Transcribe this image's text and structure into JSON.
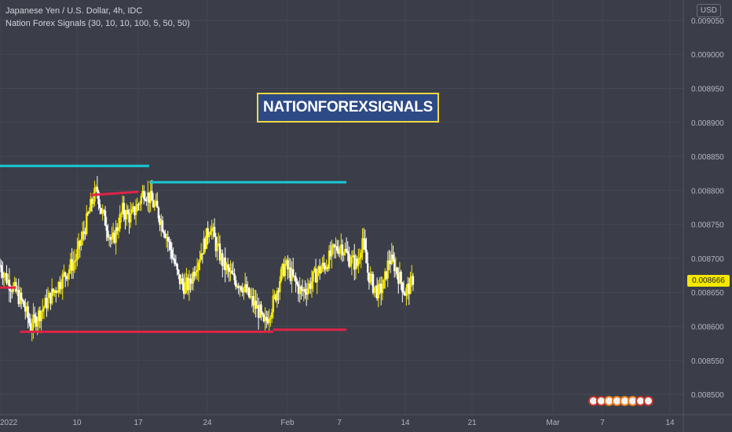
{
  "header": {
    "symbol_line": "Japanese Yen / U.S. Dollar, 4h, IDC",
    "indicator_line": "Nation Forex Signals  (30, 10, 10, 100, 5, 50, 50)",
    "currency_badge": "USD"
  },
  "watermark": {
    "text": "NATIONFOREXSIGNALS"
  },
  "current_price_label": "0.008666",
  "colors": {
    "background": "#3b3e48",
    "candle": "#f5e800",
    "candle_down": "#ffffff",
    "resistance": "#17c9d6",
    "support": "#e02446",
    "price_tag": "#f5e800",
    "brand_fill": "#2d4a86",
    "brand_border": "#f0d840"
  },
  "icons": [
    "flag-icon",
    "flag-icon",
    "flag-icon",
    "flag-icon",
    "flag-icon",
    "flag-icon",
    "flag-icon",
    "flag-icon"
  ],
  "chart_data": {
    "type": "candlestick",
    "title": "",
    "xlabel": "",
    "ylabel": "",
    "ylim": [
      0.00847,
      0.00908
    ],
    "grid": true,
    "y_ticks": [
      "0.009050",
      "0.009000",
      "0.008950",
      "0.008900",
      "0.008850",
      "0.008800",
      "0.008750",
      "0.008700",
      "0.008650",
      "0.008600",
      "0.008550",
      "0.008500"
    ],
    "x_ticks": [
      "2022",
      "10",
      "17",
      "24",
      "Feb",
      "7",
      "14",
      "21",
      "Mar",
      "7",
      "14"
    ],
    "close_path": [
      [
        0,
        0.00869
      ],
      [
        5,
        0.00867
      ],
      [
        12,
        0.00865
      ],
      [
        18,
        0.00863
      ],
      [
        23,
        0.0086
      ],
      [
        30,
        0.00862
      ],
      [
        40,
        0.00865
      ],
      [
        50,
        0.00868
      ],
      [
        57,
        0.0087
      ],
      [
        63,
        0.00874
      ],
      [
        70,
        0.00879
      ],
      [
        73,
        0.0088
      ],
      [
        76,
        0.00877
      ],
      [
        80,
        0.00875
      ],
      [
        84,
        0.00872
      ],
      [
        87,
        0.00874
      ],
      [
        92,
        0.00877
      ],
      [
        98,
        0.00876
      ],
      [
        104,
        0.00878
      ],
      [
        108,
        0.0088
      ],
      [
        112,
        0.00879
      ],
      [
        118,
        0.00877
      ],
      [
        124,
        0.00874
      ],
      [
        130,
        0.0087
      ],
      [
        134,
        0.00867
      ],
      [
        138,
        0.00866
      ],
      [
        142,
        0.00866
      ],
      [
        147,
        0.00869
      ],
      [
        153,
        0.00872
      ],
      [
        158,
        0.00875
      ],
      [
        162,
        0.00872
      ],
      [
        168,
        0.00869
      ],
      [
        175,
        0.00867
      ],
      [
        182,
        0.00866
      ],
      [
        188,
        0.00864
      ],
      [
        195,
        0.00862
      ],
      [
        198,
        0.0086
      ],
      [
        202,
        0.00862
      ],
      [
        206,
        0.00864
      ],
      [
        210,
        0.00867
      ],
      [
        214,
        0.00869
      ],
      [
        220,
        0.00867
      ],
      [
        226,
        0.00865
      ],
      [
        232,
        0.00866
      ],
      [
        238,
        0.00868
      ],
      [
        244,
        0.00869
      ],
      [
        250,
        0.00871
      ],
      [
        256,
        0.00872
      ],
      [
        262,
        0.0087
      ],
      [
        268,
        0.00869
      ],
      [
        272,
        0.00873
      ],
      [
        276,
        0.00868
      ],
      [
        280,
        0.00866
      ],
      [
        284,
        0.00865
      ],
      [
        288,
        0.00866
      ],
      [
        292,
        0.0087
      ],
      [
        296,
        0.00869
      ],
      [
        300,
        0.00867
      ],
      [
        304,
        0.00865
      ],
      [
        308,
        0.00866
      ],
      [
        310,
        0.00867
      ]
    ],
    "x_range": [
      0,
      400
    ],
    "lines": [
      {
        "name": "",
        "kind": "resistance",
        "x": [
          0,
          112
        ],
        "y": [
          0.008836,
          0.008836
        ]
      },
      {
        "name": "",
        "kind": "resistance",
        "x": [
          112,
          260
        ],
        "y": [
          0.008812,
          0.008812
        ]
      },
      {
        "name": "",
        "kind": "support",
        "x": [
          15,
          205
        ],
        "y": [
          0.008592,
          0.008592
        ]
      },
      {
        "name": "",
        "kind": "support",
        "x": [
          205,
          260
        ],
        "y": [
          0.008595,
          0.008595
        ]
      },
      {
        "name": "",
        "kind": "support",
        "x": [
          0,
          12
        ],
        "y": [
          0.008657,
          0.008657
        ]
      },
      {
        "name": "",
        "kind": "support",
        "x": [
          68,
          104
        ],
        "y": [
          0.008793,
          0.008798
        ]
      }
    ],
    "last_price": 0.008666
  }
}
